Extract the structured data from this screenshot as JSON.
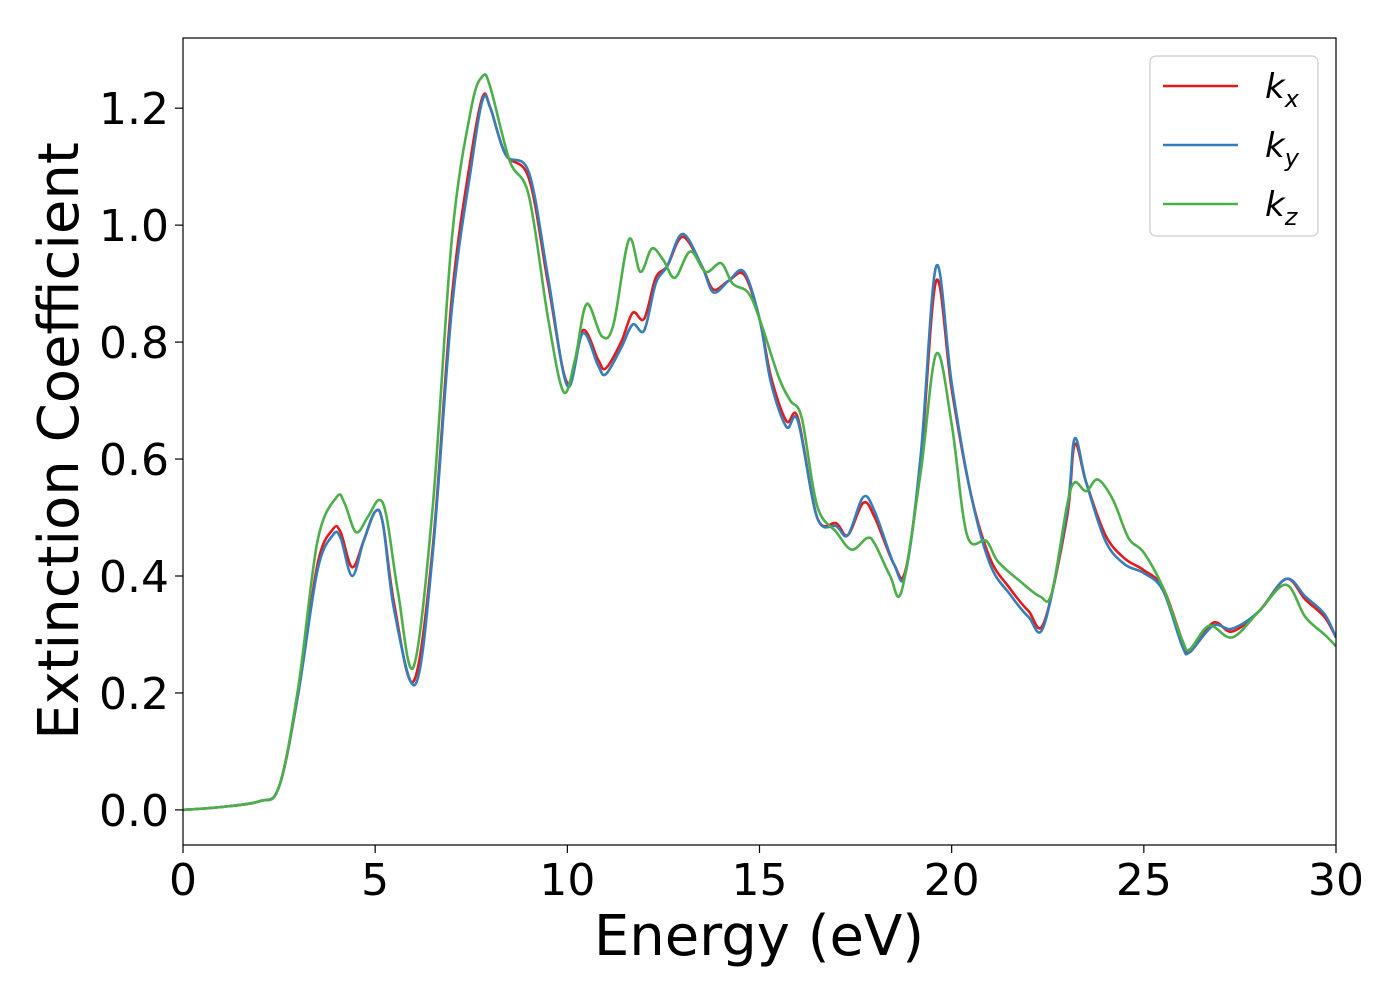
{
  "chart_data": {
    "type": "line",
    "xlabel": "Energy (eV)",
    "ylabel": "Extinction Coefficient",
    "xlim": [
      0,
      30
    ],
    "ylim": [
      -0.06,
      1.32
    ],
    "xticks": [
      0,
      5,
      10,
      15,
      20,
      25,
      30
    ],
    "yticks": [
      0.0,
      0.2,
      0.4,
      0.6,
      0.8,
      1.0,
      1.2
    ],
    "xtick_labels": [
      "0",
      "5",
      "10",
      "15",
      "20",
      "25",
      "30"
    ],
    "ytick_labels": [
      "0.0",
      "0.2",
      "0.4",
      "0.6",
      "0.8",
      "1.0",
      "1.2"
    ],
    "grid": false,
    "legend_position": "top-right",
    "series": [
      {
        "name": "k_x",
        "base": "k",
        "sub": "x",
        "color": "#e41a1c",
        "points": [
          [
            0,
            0
          ],
          [
            1,
            0.005
          ],
          [
            2,
            0.015
          ],
          [
            2.5,
            0.04
          ],
          [
            3,
            0.2
          ],
          [
            3.5,
            0.42
          ],
          [
            3.9,
            0.48
          ],
          [
            4.1,
            0.475
          ],
          [
            4.4,
            0.415
          ],
          [
            4.7,
            0.46
          ],
          [
            5.0,
            0.51
          ],
          [
            5.2,
            0.49
          ],
          [
            5.5,
            0.35
          ],
          [
            6.0,
            0.22
          ],
          [
            6.5,
            0.45
          ],
          [
            7.0,
            0.88
          ],
          [
            7.5,
            1.12
          ],
          [
            7.8,
            1.22
          ],
          [
            8.0,
            1.2
          ],
          [
            8.4,
            1.12
          ],
          [
            9.0,
            1.08
          ],
          [
            9.5,
            0.9
          ],
          [
            10.0,
            0.73
          ],
          [
            10.4,
            0.82
          ],
          [
            10.8,
            0.77
          ],
          [
            11.0,
            0.755
          ],
          [
            11.4,
            0.8
          ],
          [
            11.7,
            0.85
          ],
          [
            12.0,
            0.84
          ],
          [
            12.3,
            0.91
          ],
          [
            12.6,
            0.93
          ],
          [
            13.0,
            0.98
          ],
          [
            13.5,
            0.93
          ],
          [
            13.8,
            0.89
          ],
          [
            14.2,
            0.905
          ],
          [
            14.6,
            0.915
          ],
          [
            15.0,
            0.84
          ],
          [
            15.3,
            0.74
          ],
          [
            15.7,
            0.665
          ],
          [
            16.0,
            0.67
          ],
          [
            16.5,
            0.5
          ],
          [
            17.0,
            0.49
          ],
          [
            17.3,
            0.47
          ],
          [
            17.7,
            0.525
          ],
          [
            18.0,
            0.5
          ],
          [
            18.5,
            0.42
          ],
          [
            18.8,
            0.41
          ],
          [
            19.2,
            0.6
          ],
          [
            19.6,
            0.905
          ],
          [
            20.0,
            0.72
          ],
          [
            20.5,
            0.54
          ],
          [
            21.0,
            0.43
          ],
          [
            21.5,
            0.38
          ],
          [
            22.0,
            0.34
          ],
          [
            22.4,
            0.32
          ],
          [
            23.0,
            0.5
          ],
          [
            23.2,
            0.625
          ],
          [
            23.5,
            0.56
          ],
          [
            24.0,
            0.47
          ],
          [
            24.5,
            0.43
          ],
          [
            25.0,
            0.41
          ],
          [
            25.5,
            0.38
          ],
          [
            26.0,
            0.29
          ],
          [
            26.2,
            0.27
          ],
          [
            26.8,
            0.32
          ],
          [
            27.3,
            0.305
          ],
          [
            28.0,
            0.34
          ],
          [
            28.7,
            0.395
          ],
          [
            29.2,
            0.36
          ],
          [
            29.7,
            0.33
          ],
          [
            30.0,
            0.295
          ]
        ]
      },
      {
        "name": "k_y",
        "base": "k",
        "sub": "y",
        "color": "#377eb8",
        "points": [
          [
            0,
            0
          ],
          [
            1,
            0.005
          ],
          [
            2,
            0.015
          ],
          [
            2.5,
            0.04
          ],
          [
            3,
            0.2
          ],
          [
            3.5,
            0.41
          ],
          [
            3.9,
            0.47
          ],
          [
            4.1,
            0.465
          ],
          [
            4.4,
            0.4
          ],
          [
            4.7,
            0.46
          ],
          [
            5.0,
            0.51
          ],
          [
            5.2,
            0.49
          ],
          [
            5.5,
            0.34
          ],
          [
            6.05,
            0.215
          ],
          [
            6.5,
            0.44
          ],
          [
            7.0,
            0.86
          ],
          [
            7.5,
            1.1
          ],
          [
            7.8,
            1.215
          ],
          [
            8.0,
            1.2
          ],
          [
            8.4,
            1.12
          ],
          [
            9.0,
            1.09
          ],
          [
            9.5,
            0.91
          ],
          [
            10.0,
            0.725
          ],
          [
            10.4,
            0.815
          ],
          [
            10.8,
            0.76
          ],
          [
            11.0,
            0.745
          ],
          [
            11.4,
            0.79
          ],
          [
            11.7,
            0.83
          ],
          [
            12.0,
            0.82
          ],
          [
            12.3,
            0.9
          ],
          [
            12.6,
            0.93
          ],
          [
            13.0,
            0.985
          ],
          [
            13.5,
            0.93
          ],
          [
            13.8,
            0.885
          ],
          [
            14.2,
            0.905
          ],
          [
            14.6,
            0.92
          ],
          [
            15.0,
            0.84
          ],
          [
            15.3,
            0.73
          ],
          [
            15.7,
            0.655
          ],
          [
            16.0,
            0.665
          ],
          [
            16.5,
            0.5
          ],
          [
            17.0,
            0.485
          ],
          [
            17.3,
            0.47
          ],
          [
            17.7,
            0.535
          ],
          [
            18.0,
            0.51
          ],
          [
            18.5,
            0.42
          ],
          [
            18.8,
            0.405
          ],
          [
            19.2,
            0.61
          ],
          [
            19.6,
            0.93
          ],
          [
            20.0,
            0.73
          ],
          [
            20.5,
            0.54
          ],
          [
            21.0,
            0.42
          ],
          [
            21.5,
            0.37
          ],
          [
            22.0,
            0.33
          ],
          [
            22.4,
            0.315
          ],
          [
            23.0,
            0.51
          ],
          [
            23.2,
            0.635
          ],
          [
            23.5,
            0.56
          ],
          [
            24.0,
            0.46
          ],
          [
            24.5,
            0.42
          ],
          [
            25.0,
            0.405
          ],
          [
            25.5,
            0.375
          ],
          [
            26.0,
            0.28
          ],
          [
            26.2,
            0.27
          ],
          [
            26.8,
            0.315
          ],
          [
            27.3,
            0.31
          ],
          [
            28.0,
            0.34
          ],
          [
            28.7,
            0.395
          ],
          [
            29.2,
            0.365
          ],
          [
            29.7,
            0.335
          ],
          [
            30.0,
            0.295
          ]
        ]
      },
      {
        "name": "k_z",
        "base": "k",
        "sub": "z",
        "color": "#4daf4a",
        "points": [
          [
            0,
            0
          ],
          [
            1,
            0.005
          ],
          [
            2,
            0.015
          ],
          [
            2.5,
            0.04
          ],
          [
            3,
            0.21
          ],
          [
            3.5,
            0.46
          ],
          [
            4.0,
            0.535
          ],
          [
            4.2,
            0.525
          ],
          [
            4.5,
            0.475
          ],
          [
            4.8,
            0.5
          ],
          [
            5.1,
            0.53
          ],
          [
            5.3,
            0.5
          ],
          [
            5.6,
            0.37
          ],
          [
            6.0,
            0.245
          ],
          [
            6.5,
            0.52
          ],
          [
            7.0,
            0.98
          ],
          [
            7.5,
            1.2
          ],
          [
            7.8,
            1.255
          ],
          [
            8.0,
            1.235
          ],
          [
            8.5,
            1.11
          ],
          [
            9.0,
            1.05
          ],
          [
            9.5,
            0.84
          ],
          [
            9.9,
            0.715
          ],
          [
            10.2,
            0.77
          ],
          [
            10.5,
            0.865
          ],
          [
            10.9,
            0.81
          ],
          [
            11.2,
            0.83
          ],
          [
            11.6,
            0.975
          ],
          [
            11.9,
            0.92
          ],
          [
            12.2,
            0.96
          ],
          [
            12.5,
            0.94
          ],
          [
            12.8,
            0.91
          ],
          [
            13.2,
            0.955
          ],
          [
            13.6,
            0.92
          ],
          [
            14.0,
            0.935
          ],
          [
            14.3,
            0.9
          ],
          [
            14.7,
            0.885
          ],
          [
            15.0,
            0.84
          ],
          [
            15.5,
            0.74
          ],
          [
            15.8,
            0.7
          ],
          [
            16.1,
            0.67
          ],
          [
            16.5,
            0.52
          ],
          [
            17.0,
            0.475
          ],
          [
            17.4,
            0.445
          ],
          [
            17.8,
            0.465
          ],
          [
            18.0,
            0.455
          ],
          [
            18.4,
            0.4
          ],
          [
            18.7,
            0.375
          ],
          [
            19.2,
            0.58
          ],
          [
            19.6,
            0.78
          ],
          [
            20.0,
            0.66
          ],
          [
            20.4,
            0.47
          ],
          [
            20.9,
            0.46
          ],
          [
            21.2,
            0.425
          ],
          [
            21.8,
            0.39
          ],
          [
            22.3,
            0.365
          ],
          [
            22.6,
            0.37
          ],
          [
            23.0,
            0.52
          ],
          [
            23.2,
            0.56
          ],
          [
            23.5,
            0.545
          ],
          [
            23.8,
            0.565
          ],
          [
            24.2,
            0.53
          ],
          [
            24.6,
            0.465
          ],
          [
            25.0,
            0.44
          ],
          [
            25.5,
            0.38
          ],
          [
            26.0,
            0.29
          ],
          [
            26.2,
            0.275
          ],
          [
            26.7,
            0.315
          ],
          [
            27.3,
            0.295
          ],
          [
            28.0,
            0.34
          ],
          [
            28.7,
            0.385
          ],
          [
            29.2,
            0.33
          ],
          [
            29.7,
            0.3
          ],
          [
            30.0,
            0.28
          ]
        ]
      }
    ]
  }
}
